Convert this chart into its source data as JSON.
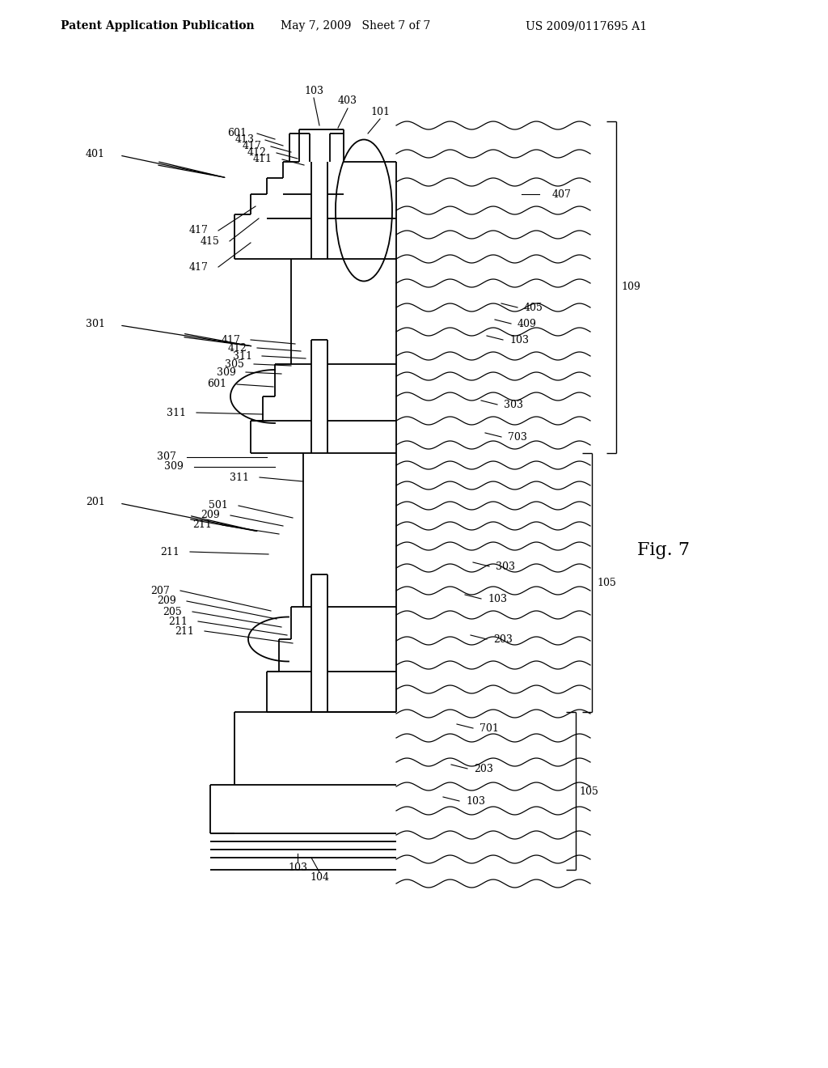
{
  "header_left": "Patent Application Publication",
  "header_mid": "May 7, 2009   Sheet 7 of 7",
  "header_right": "US 2009/0117695 A1",
  "fig_label": "Fig. 7",
  "background": "#ffffff"
}
